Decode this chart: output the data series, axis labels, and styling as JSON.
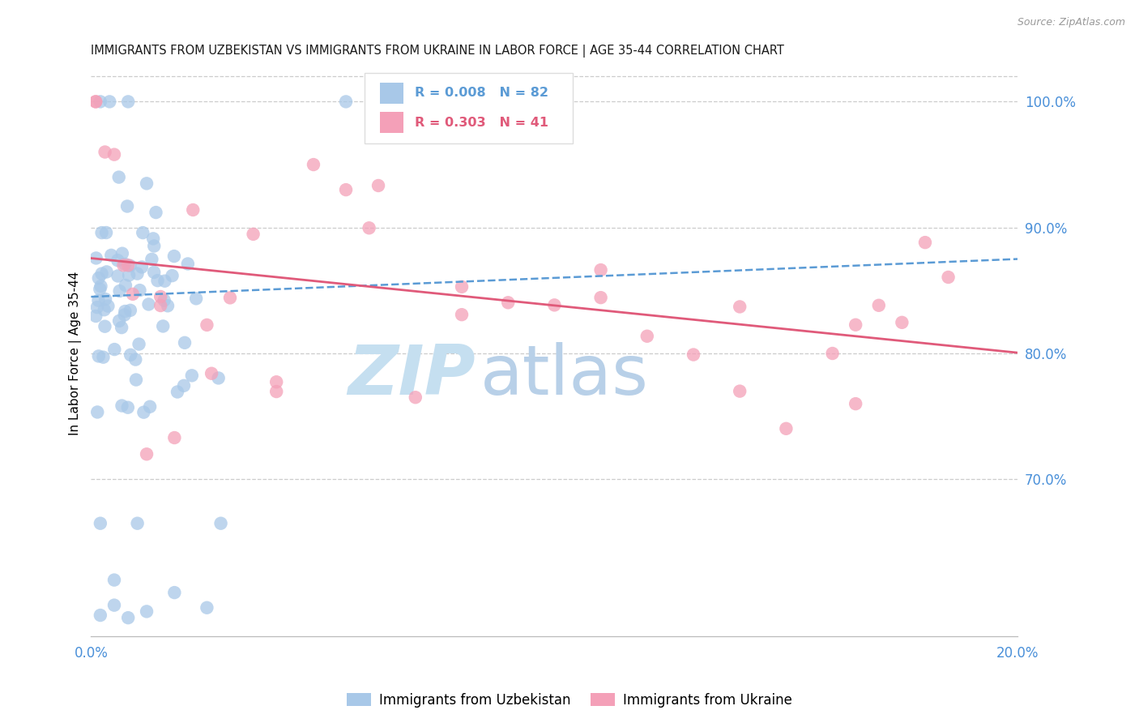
{
  "title": "IMMIGRANTS FROM UZBEKISTAN VS IMMIGRANTS FROM UKRAINE IN LABOR FORCE | AGE 35-44 CORRELATION CHART",
  "source": "Source: ZipAtlas.com",
  "ylabel": "In Labor Force | Age 35-44",
  "legend_label_1": "Immigrants from Uzbekistan",
  "legend_label_2": "Immigrants from Ukraine",
  "R1": 0.008,
  "N1": 82,
  "R2": 0.303,
  "N2": 41,
  "color1": "#a8c8e8",
  "color2": "#f4a0b8",
  "trendline1_color": "#5b9bd5",
  "trendline2_color": "#e05a7a",
  "xmin": 0.0,
  "xmax": 0.2,
  "ymin": 0.575,
  "ymax": 1.025,
  "ytick_vals": [
    0.7,
    0.8,
    0.9,
    1.0
  ],
  "ytick_labels": [
    "70.0%",
    "80.0%",
    "90.0%",
    "100.0%"
  ],
  "xtick_vals": [
    0.0,
    0.04,
    0.08,
    0.12,
    0.16,
    0.2
  ],
  "xtick_labels": [
    "0.0%",
    "",
    "",
    "",
    "",
    "20.0%"
  ],
  "background_color": "#ffffff",
  "watermark_zip": "ZIP",
  "watermark_atlas": "atlas",
  "watermark_color_zip": "#c8dff0",
  "watermark_color_atlas": "#b0c8e0",
  "title_color": "#1a1a1a",
  "axis_label_color": "#4a90d9",
  "source_color": "#999999",
  "legend_edge_color": "#dddddd",
  "grid_color": "#cccccc"
}
